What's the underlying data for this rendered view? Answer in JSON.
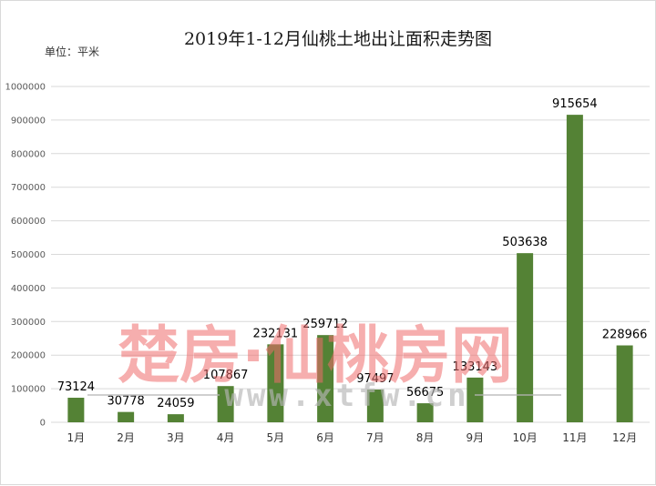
{
  "chart_data": {
    "type": "bar",
    "title": "2019年1-12月仙桃土地出让面积走势图",
    "unit_label": "单位：平米",
    "categories": [
      "1月",
      "2月",
      "3月",
      "4月",
      "5月",
      "6月",
      "7月",
      "8月",
      "9月",
      "10月",
      "11月",
      "12月"
    ],
    "values": [
      73124,
      30778,
      24059,
      107867,
      232131,
      259712,
      97497,
      56675,
      133143,
      503638,
      915654,
      228966
    ],
    "ylim": [
      0,
      1000000
    ],
    "yticks": [
      "0",
      "100000",
      "200000",
      "300000",
      "400000",
      "500000",
      "600000",
      "700000",
      "800000",
      "900000",
      "1000000"
    ],
    "grid": true,
    "legend": "none",
    "bar_color": "#548235"
  },
  "watermark": {
    "main": "楚房·仙桃房网",
    "url": "www.xtfw.cn"
  }
}
